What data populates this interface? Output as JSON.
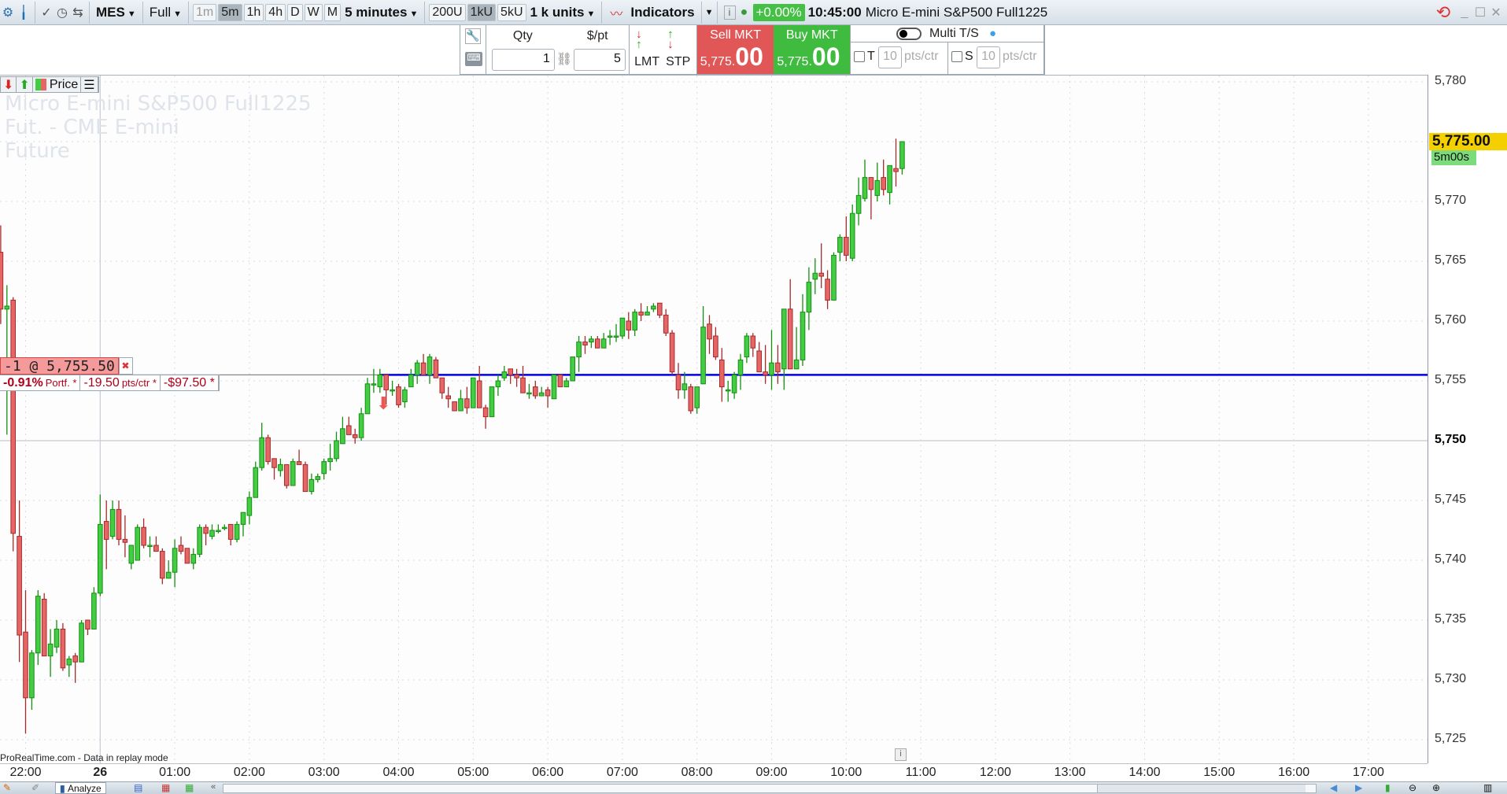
{
  "toolbar": {
    "symbol": "MES",
    "view_mode": "Full",
    "timeframes": [
      "1m",
      "5m",
      "1h",
      "4h",
      "D",
      "W",
      "M"
    ],
    "timeframe_active": "5m",
    "timeframe_select": "5 minutes",
    "units": [
      "200U",
      "1kU",
      "5kU"
    ],
    "units_active": "1kU",
    "units_select": "1 k units",
    "indicators_label": "Indicators",
    "change_pct": "+0.00%",
    "time": "10:45:00",
    "instrument": "Micro E-mini S&P500 Full1225",
    "colors": {
      "change_bg": "#44c144"
    }
  },
  "order_panel": {
    "qty_label": "Qty",
    "ppt_label": "$/pt",
    "qty_value": "1",
    "ppt_value": "5",
    "lmt_label": "LMT",
    "stp_label": "STP",
    "sell_label": "Sell MKT",
    "sell_price_prefix": "5,775.",
    "sell_price_big": "00",
    "buy_label": "Buy MKT",
    "buy_price_prefix": "5,775.",
    "buy_price_big": "00",
    "multi_ts_label": "Multi T/S",
    "multi_ts_on": false,
    "target_label": "T",
    "target_value": "10",
    "target_unit": "pts/ctr",
    "stop_label": "S",
    "stop_value": "10",
    "stop_unit": "pts/ctr",
    "colors": {
      "sell": "#e15656",
      "buy": "#3fbb3f"
    }
  },
  "chart": {
    "price_toggle_label": "Price",
    "watermark": [
      "Micro E-mini S&P500 Full1225",
      "Fut. - CME E-mini",
      "Future"
    ],
    "position": {
      "label": "-1 @ 5,755.50",
      "pct": "-0.91%",
      "pct_suffix": "Portf. *",
      "pts": "-19.50",
      "pts_suffix": "pts/ctr *",
      "money": "-$97.50 *"
    },
    "current_price": "5,775.00",
    "countdown": "5m00s",
    "footer_note": "ProRealTime.com - Data in replay mode",
    "price_ticks": [
      "5,780",
      "5,770",
      "5,765",
      "5,760",
      "5,755",
      "5,750",
      "5,745",
      "5,740",
      "5,735",
      "5,730",
      "5,725"
    ],
    "time_ticks": [
      "22:00",
      "26",
      "01:00",
      "02:00",
      "03:00",
      "04:00",
      "05:00",
      "06:00",
      "07:00",
      "08:00",
      "09:00",
      "10:00",
      "11:00",
      "12:00",
      "13:00",
      "14:00",
      "15:00",
      "16:00",
      "17:00"
    ],
    "colors": {
      "up": "#44cc44",
      "down": "#e66666",
      "position_line": "#0000ee",
      "price_badge": "#f4d000",
      "countdown_badge": "#7cdc7c"
    }
  },
  "bottombar": {
    "tab_label": "Analyze"
  },
  "chart_data": {
    "type": "candlestick",
    "interval": "5 minutes",
    "ylim": [
      5723,
      5782
    ],
    "position_price": 5755.5,
    "last_price": 5775.0,
    "columns": [
      "time",
      "open",
      "high",
      "low",
      "close"
    ],
    "candles": [
      [
        "21:40",
        5765.75,
        5768,
        5759.75,
        5761
      ],
      [
        "21:45",
        5761,
        5763,
        5750.5,
        5761.25
      ],
      [
        "21:50",
        5761.75,
        5762,
        5740.75,
        5742.25
      ],
      [
        "21:55",
        5742,
        5745,
        5731.5,
        5733.75
      ],
      [
        "22:00",
        5734,
        5737.5,
        5725.5,
        5728.5
      ],
      [
        "22:05",
        5728.5,
        5732.5,
        5727.5,
        5732.25
      ],
      [
        "22:10",
        5732.25,
        5737.5,
        5731.25,
        5737
      ],
      [
        "22:15",
        5736.75,
        5737.25,
        5732,
        5732
      ],
      [
        "22:20",
        5732,
        5734.25,
        5730.25,
        5733
      ],
      [
        "22:25",
        5732.75,
        5735,
        5732.25,
        5734.25
      ],
      [
        "22:30",
        5734.25,
        5734.75,
        5730.75,
        5731
      ],
      [
        "22:35",
        5731.25,
        5732,
        5730.25,
        5731.75
      ],
      [
        "22:40",
        5732,
        5732.25,
        5729.75,
        5731.5
      ],
      [
        "22:45",
        5731.5,
        5735,
        5731.5,
        5734.75
      ],
      [
        "22:50",
        5735,
        5735,
        5733.75,
        5734.25
      ],
      [
        "22:55",
        5734.25,
        5737.75,
        5734.25,
        5737.25
      ],
      [
        "00:00",
        5737.25,
        5745.5,
        5737,
        5743
      ],
      [
        "00:05",
        5743.25,
        5745,
        5739.25,
        5741.75
      ],
      [
        "00:10",
        5742,
        5745,
        5741.75,
        5744.25
      ],
      [
        "00:15",
        5744.25,
        5745,
        5741.25,
        5741.75
      ],
      [
        "00:20",
        5741.75,
        5743.75,
        5740.25,
        5741.5
      ],
      [
        "00:25",
        5739.75,
        5741.25,
        5739.25,
        5741.25
      ],
      [
        "00:30",
        5740,
        5743,
        5740,
        5742.75
      ],
      [
        "00:35",
        5742.75,
        5743.5,
        5741,
        5741.25
      ],
      [
        "00:40",
        5741.25,
        5742,
        5740.25,
        5741.25
      ],
      [
        "00:45",
        5741.25,
        5742,
        5740.75,
        5740.75
      ],
      [
        "00:50",
        5740.75,
        5741,
        5738,
        5738.5
      ],
      [
        "00:55",
        5738.5,
        5740,
        5738.5,
        5739
      ],
      [
        "01:00",
        5739,
        5741.75,
        5737.75,
        5741
      ],
      [
        "01:05",
        5741.25,
        5742,
        5740.5,
        5740.75
      ],
      [
        "01:10",
        5741,
        5741,
        5739.75,
        5739.75
      ],
      [
        "01:15",
        5739.75,
        5741,
        5739.25,
        5740.5
      ],
      [
        "01:20",
        5740.5,
        5743,
        5740.25,
        5742.75
      ],
      [
        "01:25",
        5742.75,
        5743,
        5741.25,
        5742.25
      ],
      [
        "01:30",
        5742,
        5743,
        5741.75,
        5742.5
      ],
      [
        "01:35",
        5742.5,
        5743,
        5742.25,
        5742.5
      ],
      [
        "01:40",
        5742.75,
        5743,
        5742.5,
        5742.75
      ],
      [
        "01:45",
        5743,
        5743,
        5741.25,
        5741.75
      ],
      [
        "01:50",
        5741.75,
        5743.25,
        5741.5,
        5743
      ],
      [
        "01:55",
        5743,
        5744,
        5742,
        5744
      ],
      [
        "02:00",
        5743.75,
        5745.75,
        5743,
        5745.25
      ],
      [
        "02:05",
        5745.25,
        5748.25,
        5745.25,
        5747.75
      ],
      [
        "02:10",
        5747.75,
        5751.5,
        5747.5,
        5750.25
      ],
      [
        "02:15",
        5750.25,
        5750.5,
        5748,
        5748.25
      ],
      [
        "02:20",
        5748.5,
        5748.5,
        5746.75,
        5747.75
      ],
      [
        "02:25",
        5747.5,
        5748.5,
        5747,
        5748
      ],
      [
        "02:30",
        5748,
        5748,
        5746,
        5746.25
      ],
      [
        "02:35",
        5746.25,
        5748.5,
        5746.25,
        5748.25
      ],
      [
        "02:40",
        5748.25,
        5749.25,
        5748,
        5748
      ],
      [
        "02:45",
        5748,
        5748.25,
        5745.75,
        5745.75
      ],
      [
        "02:50",
        5745.75,
        5747.25,
        5745.5,
        5746.75
      ],
      [
        "02:55",
        5746.75,
        5747.25,
        5746.5,
        5747
      ],
      [
        "03:00",
        5747.25,
        5748.5,
        5746.75,
        5748.25
      ],
      [
        "03:05",
        5748.25,
        5749.75,
        5747.5,
        5748.5
      ],
      [
        "03:10",
        5748.5,
        5750.75,
        5748.25,
        5750
      ],
      [
        "03:15",
        5749.75,
        5752,
        5749.75,
        5751
      ],
      [
        "03:20",
        5751.25,
        5752,
        5750.5,
        5750.5
      ],
      [
        "03:25",
        5750.5,
        5751,
        5749.75,
        5750.25
      ],
      [
        "03:30",
        5750.25,
        5752.75,
        5750,
        5752.25
      ],
      [
        "03:35",
        5752.25,
        5755.25,
        5752.25,
        5754.75
      ],
      [
        "03:40",
        5754.75,
        5756,
        5754,
        5754.75
      ],
      [
        "03:45",
        5754.5,
        5756,
        5754,
        5755.5
      ],
      [
        "03:50",
        5755.5,
        5755.5,
        5753,
        5754.25
      ],
      [
        "03:55",
        5754.25,
        5755,
        5753.75,
        5754.25
      ],
      [
        "04:00",
        5754.5,
        5754.75,
        5752.75,
        5753
      ],
      [
        "04:05",
        5753.25,
        5754.5,
        5752.75,
        5754.25
      ],
      [
        "04:10",
        5754.5,
        5756,
        5754.5,
        5755.5
      ],
      [
        "04:15",
        5755.5,
        5756.75,
        5754.75,
        5756.5
      ],
      [
        "04:20",
        5756.5,
        5757.25,
        5755.5,
        5755.5
      ],
      [
        "04:25",
        5755.5,
        5757.25,
        5754.75,
        5757
      ],
      [
        "04:30",
        5756.75,
        5757,
        5755.25,
        5755.25
      ],
      [
        "04:35",
        5755.25,
        5755.25,
        5753.5,
        5754
      ],
      [
        "04:40",
        5753.75,
        5754.5,
        5752.75,
        5753.5
      ],
      [
        "04:45",
        5753.25,
        5753.25,
        5752.5,
        5752.5
      ],
      [
        "04:50",
        5752.5,
        5754.25,
        5752.5,
        5753.5
      ],
      [
        "04:55",
        5753.5,
        5754.5,
        5752.25,
        5752.75
      ],
      [
        "05:00",
        5752.75,
        5755.25,
        5752.75,
        5755.25
      ],
      [
        "05:05",
        5755,
        5756.25,
        5752.75,
        5752.75
      ],
      [
        "05:10",
        5752.75,
        5753,
        5751,
        5752
      ],
      [
        "05:15",
        5752,
        5754.5,
        5752,
        5754.5
      ],
      [
        "05:20",
        5754.5,
        5755.5,
        5753.75,
        5755
      ],
      [
        "05:25",
        5755.25,
        5756.25,
        5755,
        5755.75
      ],
      [
        "05:30",
        5756,
        5756,
        5754.75,
        5755.5
      ],
      [
        "05:35",
        5755.5,
        5756,
        5754.5,
        5755.25
      ],
      [
        "05:40",
        5755.25,
        5756.25,
        5754,
        5754
      ],
      [
        "05:45",
        5754,
        5754.75,
        5753.5,
        5754
      ],
      [
        "05:50",
        5754.5,
        5755,
        5753.5,
        5753.75
      ],
      [
        "05:55",
        5753.75,
        5754.5,
        5753.75,
        5754
      ],
      [
        "06:00",
        5754.25,
        5754.5,
        5752.75,
        5753.75
      ],
      [
        "06:05",
        5753.5,
        5755.5,
        5753.5,
        5755.5
      ],
      [
        "06:10",
        5755.5,
        5755.5,
        5754.5,
        5754.5
      ],
      [
        "06:15",
        5754.5,
        5755.25,
        5754.5,
        5755
      ],
      [
        "06:20",
        5755,
        5757,
        5755,
        5757
      ],
      [
        "06:25",
        5757,
        5758.75,
        5755.75,
        5758.25
      ],
      [
        "06:30",
        5758.25,
        5758.75,
        5757.25,
        5758
      ],
      [
        "06:35",
        5758.25,
        5758.75,
        5757.75,
        5758.5
      ],
      [
        "06:40",
        5758.5,
        5758.75,
        5757.75,
        5757.75
      ],
      [
        "06:45",
        5757.75,
        5759,
        5757.75,
        5758.5
      ],
      [
        "06:50",
        5758.75,
        5759.25,
        5758,
        5758.75
      ],
      [
        "06:55",
        5758.75,
        5759.75,
        5758.25,
        5758.75
      ],
      [
        "07:00",
        5758.75,
        5760.25,
        5758.5,
        5760.25
      ],
      [
        "07:05",
        5760,
        5760.75,
        5758.5,
        5759.25
      ],
      [
        "07:10",
        5759.25,
        5761,
        5758.75,
        5760.75
      ],
      [
        "07:15",
        5760.75,
        5761.5,
        5760,
        5760.5
      ],
      [
        "07:20",
        5760.5,
        5761.25,
        5760.5,
        5760.75
      ],
      [
        "07:25",
        5761,
        5761.5,
        5760.75,
        5761.25
      ],
      [
        "07:30",
        5761.5,
        5761.5,
        5760.25,
        5760.5
      ],
      [
        "07:35",
        5760.5,
        5761,
        5758.75,
        5759
      ],
      [
        "07:40",
        5759,
        5759.25,
        5755.5,
        5755.75
      ],
      [
        "07:45",
        5755.5,
        5756.5,
        5753.5,
        5754.25
      ],
      [
        "07:50",
        5754.25,
        5755.75,
        5753.5,
        5754.75
      ],
      [
        "07:55",
        5754.5,
        5754.75,
        5752.25,
        5752.5
      ],
      [
        "08:00",
        5752.75,
        5754.5,
        5752.25,
        5754.5
      ],
      [
        "08:05",
        5754.75,
        5761.25,
        5754.75,
        5759.5
      ],
      [
        "08:10",
        5759.75,
        5760.5,
        5757.25,
        5758.5
      ],
      [
        "08:15",
        5758.75,
        5759.5,
        5756.75,
        5757
      ],
      [
        "08:20",
        5756.75,
        5757.75,
        5753.25,
        5754.5
      ],
      [
        "08:25",
        5754.25,
        5755,
        5753.25,
        5754.25
      ],
      [
        "08:30",
        5754,
        5755.75,
        5753.5,
        5755.5
      ],
      [
        "08:35",
        5755.5,
        5757.25,
        5754.25,
        5756.75
      ],
      [
        "08:40",
        5757,
        5759,
        5756.5,
        5758.75
      ],
      [
        "08:45",
        5758.75,
        5759,
        5757,
        5757.75
      ],
      [
        "08:50",
        5757.5,
        5758.25,
        5755.75,
        5755.75
      ],
      [
        "08:55",
        5755.75,
        5758,
        5754.75,
        5755.5
      ],
      [
        "09:00",
        5755.5,
        5759.25,
        5754.25,
        5756.5
      ],
      [
        "09:05",
        5756.5,
        5758,
        5754.75,
        5755.75
      ],
      [
        "09:10",
        5756,
        5761,
        5754.25,
        5761
      ],
      [
        "09:15",
        5761,
        5763.5,
        5756,
        5756
      ],
      [
        "09:20",
        5756,
        5759.5,
        5756,
        5756.75
      ],
      [
        "09:25",
        5756.75,
        5762.25,
        5756.25,
        5760.75
      ],
      [
        "09:30",
        5760.75,
        5764.5,
        5759.25,
        5763.25
      ],
      [
        "09:35",
        5763.5,
        5765.25,
        5762.25,
        5764
      ],
      [
        "09:40",
        5764,
        5766.5,
        5762.75,
        5763.75
      ],
      [
        "09:45",
        5763.5,
        5764.25,
        5761,
        5761.75
      ],
      [
        "09:50",
        5761.75,
        5765.75,
        5761.75,
        5765.5
      ],
      [
        "09:55",
        5765.75,
        5767.25,
        5765,
        5767
      ],
      [
        "10:00",
        5767,
        5768.75,
        5765,
        5765.5
      ],
      [
        "10:05",
        5765.25,
        5769.75,
        5765,
        5769
      ],
      [
        "10:10",
        5769,
        5772,
        5768,
        5770.5
      ],
      [
        "10:15",
        5770.25,
        5773.5,
        5770,
        5772
      ],
      [
        "10:20",
        5772,
        5772,
        5768.5,
        5771
      ],
      [
        "10:25",
        5770.5,
        5773.25,
        5770,
        5771.75
      ],
      [
        "10:30",
        5772,
        5773.5,
        5770.5,
        5771
      ],
      [
        "10:35",
        5770.75,
        5773,
        5769.75,
        5773
      ],
      [
        "10:40",
        5772.75,
        5775.25,
        5771.25,
        5772.5
      ],
      [
        "10:45",
        5772.75,
        5775,
        5772.25,
        5775
      ]
    ]
  }
}
